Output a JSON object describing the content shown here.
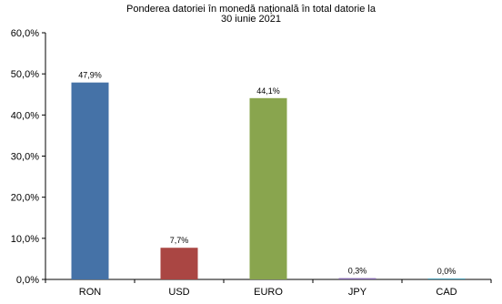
{
  "chart_data": {
    "type": "bar",
    "title_lines": [
      "Ponderea datoriei în monedă națională în total datorie la",
      "30 iunie 2021"
    ],
    "categories": [
      "RON",
      "USD",
      "EURO",
      "JPY",
      "CAD"
    ],
    "values": [
      47.9,
      7.7,
      44.1,
      0.3,
      0.0
    ],
    "data_labels": [
      "47,9%",
      "7,7%",
      "44,1%",
      "0,3%",
      "0,0%"
    ],
    "colors": [
      "#4572a7",
      "#aa4643",
      "#89a54e",
      "#7f62a8",
      "#4198af"
    ],
    "y_ticks": [
      0,
      10,
      20,
      30,
      40,
      50,
      60
    ],
    "y_tick_labels": [
      "0,0%",
      "10,0%",
      "20,0%",
      "30,0%",
      "40,0%",
      "50,0%",
      "60,0%"
    ],
    "ylim": [
      0,
      60
    ],
    "grid": false,
    "legend": false
  }
}
